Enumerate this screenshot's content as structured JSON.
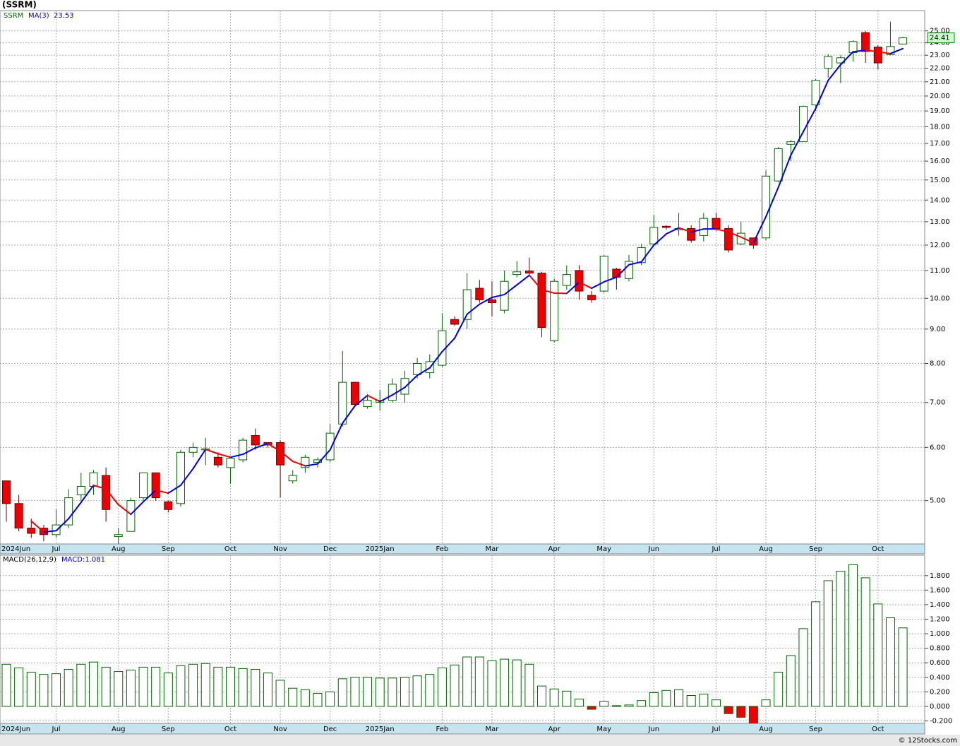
{
  "footer": "© 12Stocks.com",
  "chart_data": [
    {
      "type": "candlestick",
      "title": "(SSRM)",
      "ticker": "SSRM",
      "log_scale": true,
      "grid": true,
      "up_color": "#ffffff",
      "up_edge": "#006600",
      "down_color": "#ee0000",
      "down_edge": "#660000",
      "categories": [
        "2024Jun",
        null,
        null,
        null,
        "Jul",
        null,
        null,
        null,
        null,
        "Aug",
        null,
        null,
        null,
        "Sep",
        null,
        null,
        null,
        null,
        "Oct",
        null,
        null,
        null,
        "Nov",
        null,
        null,
        null,
        "Dec",
        null,
        null,
        null,
        "2025Jan",
        null,
        null,
        null,
        null,
        "Feb",
        null,
        null,
        null,
        "Mar",
        null,
        null,
        null,
        null,
        "Apr",
        null,
        null,
        null,
        "May",
        null,
        null,
        null,
        "Jun",
        null,
        null,
        null,
        null,
        "Jul",
        null,
        null,
        null,
        "Aug",
        null,
        null,
        null,
        "Sep",
        null,
        null,
        null,
        null,
        "Oct",
        null,
        null
      ],
      "open": [
        5.35,
        4.95,
        4.55,
        4.55,
        4.45,
        4.6,
        5.1,
        5.25,
        5.45,
        4.42,
        4.5,
        5.05,
        5.5,
        4.98,
        4.95,
        5.9,
        5.95,
        5.8,
        5.6,
        5.75,
        6.25,
        6.1,
        6.1,
        5.35,
        5.6,
        5.7,
        5.75,
        6.5,
        7.5,
        6.9,
        7.0,
        7.05,
        7.2,
        7.7,
        7.75,
        7.95,
        9.3,
        9.3,
        10.35,
        9.95,
        9.6,
        10.85,
        10.98,
        10.9,
        8.65,
        10.45,
        11.0,
        10.1,
        10.25,
        11.05,
        10.7,
        11.3,
        12.05,
        12.8,
        12.65,
        12.7,
        12.4,
        13.15,
        12.7,
        12.05,
        12.3,
        12.3,
        14.95,
        16.95,
        17.1,
        19.4,
        22.0,
        22.4,
        23.2,
        24.85,
        23.65,
        23.05,
        23.9
      ],
      "high": [
        5.35,
        5.1,
        4.7,
        4.6,
        4.85,
        5.2,
        5.5,
        5.55,
        5.6,
        4.55,
        5.05,
        5.5,
        5.5,
        5.0,
        5.95,
        6.1,
        6.2,
        5.9,
        5.8,
        6.2,
        6.4,
        6.1,
        6.15,
        5.55,
        5.85,
        5.8,
        6.5,
        8.35,
        7.5,
        7.2,
        7.3,
        7.6,
        7.8,
        8.15,
        8.25,
        9.5,
        9.4,
        10.9,
        10.65,
        10.6,
        11.0,
        11.35,
        11.5,
        10.95,
        10.7,
        11.2,
        11.2,
        10.25,
        11.6,
        11.1,
        11.6,
        12.05,
        13.3,
        12.85,
        13.4,
        12.85,
        13.4,
        13.4,
        12.85,
        13.0,
        12.3,
        15.5,
        16.8,
        17.2,
        19.35,
        21.2,
        23.1,
        23.0,
        24.2,
        25.0,
        23.8,
        25.8,
        24.5
      ],
      "low": [
        4.65,
        4.5,
        4.4,
        4.35,
        4.4,
        4.55,
        5.0,
        5.1,
        4.65,
        4.3,
        4.5,
        5.0,
        5.0,
        4.8,
        4.9,
        5.8,
        5.65,
        5.6,
        5.3,
        5.7,
        5.95,
        6.0,
        5.05,
        5.3,
        5.5,
        5.6,
        5.7,
        6.45,
        6.9,
        6.85,
        6.8,
        7.0,
        7.0,
        7.6,
        7.6,
        7.9,
        9.1,
        9.0,
        9.85,
        9.4,
        9.5,
        10.75,
        10.85,
        8.75,
        8.6,
        10.3,
        9.95,
        9.85,
        10.2,
        10.3,
        10.6,
        11.2,
        11.95,
        12.65,
        12.4,
        12.1,
        12.15,
        12.6,
        11.7,
        12.0,
        11.85,
        12.2,
        14.9,
        16.0,
        17.1,
        19.0,
        21.3,
        20.9,
        22.5,
        22.4,
        21.9,
        23.0,
        23.9
      ],
      "close": [
        4.95,
        4.55,
        4.47,
        4.45,
        4.6,
        5.05,
        5.25,
        5.5,
        4.85,
        4.45,
        5.0,
        5.5,
        5.05,
        4.85,
        5.9,
        6.0,
        5.97,
        5.65,
        5.78,
        6.15,
        6.05,
        6.05,
        5.65,
        5.45,
        5.8,
        5.75,
        6.3,
        7.5,
        6.95,
        7.05,
        7.05,
        7.45,
        7.6,
        8.0,
        8.05,
        8.95,
        9.15,
        10.3,
        9.95,
        9.85,
        10.6,
        10.95,
        10.9,
        9.05,
        10.6,
        10.85,
        10.25,
        9.95,
        11.55,
        10.75,
        11.35,
        11.9,
        12.75,
        12.75,
        12.7,
        12.2,
        13.15,
        12.7,
        11.8,
        12.5,
        12.0,
        15.2,
        16.7,
        17.1,
        19.3,
        21.1,
        22.9,
        22.8,
        24.1,
        23.3,
        22.4,
        23.7,
        24.41
      ],
      "series": [
        {
          "name": "MA(3)",
          "color": "#0000dd",
          "down_color": "#ee0000",
          "values": [
            null,
            null,
            4.66,
            4.49,
            4.51,
            4.7,
            4.97,
            5.27,
            5.2,
            4.93,
            4.77,
            4.98,
            5.18,
            5.13,
            5.27,
            5.58,
            5.96,
            5.87,
            5.8,
            5.86,
            5.99,
            6.08,
            5.92,
            5.72,
            5.63,
            5.67,
            5.95,
            6.52,
            6.92,
            7.17,
            7.02,
            7.18,
            7.37,
            7.68,
            7.88,
            8.33,
            8.72,
            9.47,
            9.8,
            10.03,
            10.13,
            10.47,
            10.82,
            10.3,
            10.18,
            10.17,
            10.57,
            10.35,
            10.58,
            10.75,
            11.22,
            11.33,
            12.0,
            12.47,
            12.73,
            12.55,
            12.68,
            12.68,
            12.55,
            12.33,
            12.1,
            13.23,
            14.63,
            16.33,
            17.7,
            19.17,
            21.1,
            22.27,
            23.27,
            23.4,
            23.27,
            23.13,
            23.53
          ]
        }
      ],
      "ylim": [
        4.31,
        26.8
      ],
      "yticks": [
        {
          "value": 5,
          "label": "5.00"
        },
        {
          "value": 6,
          "label": "6.00"
        },
        {
          "value": 7,
          "label": "7.00"
        },
        {
          "value": 8,
          "label": "8.00"
        },
        {
          "value": 9,
          "label": "9.00"
        },
        {
          "value": 10,
          "label": "10.00"
        },
        {
          "value": 11,
          "label": "11.00"
        },
        {
          "value": 12,
          "label": "12.00"
        },
        {
          "value": 13,
          "label": "13.00"
        },
        {
          "value": 14,
          "label": "14.00"
        },
        {
          "value": 15,
          "label": "15.00"
        },
        {
          "value": 16,
          "label": "16.00"
        },
        {
          "value": 17,
          "label": "17.00"
        },
        {
          "value": 18,
          "label": "18.00"
        },
        {
          "value": 19,
          "label": "19.00"
        },
        {
          "value": 20,
          "label": "20.00"
        },
        {
          "value": 21,
          "label": "21.00"
        },
        {
          "value": 22,
          "label": "22.00"
        },
        {
          "value": 23,
          "label": "23.00"
        },
        {
          "value": 24,
          "label": "24.00"
        },
        {
          "value": 25,
          "label": "25.00"
        }
      ]
    },
    {
      "type": "bar",
      "title": "MACD(26,12,9)",
      "legend_label": "MACD:1.081",
      "grid": true,
      "color": "#ffffff",
      "edge": "#006600",
      "negative_color": "#ee0000",
      "categories": [
        "2024Jun",
        null,
        null,
        null,
        "Jul",
        null,
        null,
        null,
        null,
        "Aug",
        null,
        null,
        null,
        "Sep",
        null,
        null,
        null,
        null,
        "Oct",
        null,
        null,
        null,
        "Nov",
        null,
        null,
        null,
        "Dec",
        null,
        null,
        null,
        "2025Jan",
        null,
        null,
        null,
        null,
        "Feb",
        null,
        null,
        null,
        "Mar",
        null,
        null,
        null,
        null,
        "Apr",
        null,
        null,
        null,
        "May",
        null,
        null,
        null,
        "Jun",
        null,
        null,
        null,
        null,
        "Jul",
        null,
        null,
        null,
        "Aug",
        null,
        null,
        null,
        "Sep",
        null,
        null,
        null,
        null,
        "Oct",
        null,
        null
      ],
      "values": [
        0.58,
        0.53,
        0.47,
        0.44,
        0.45,
        0.51,
        0.58,
        0.61,
        0.54,
        0.48,
        0.5,
        0.54,
        0.54,
        0.46,
        0.56,
        0.58,
        0.59,
        0.54,
        0.54,
        0.52,
        0.51,
        0.46,
        0.36,
        0.25,
        0.23,
        0.18,
        0.2,
        0.38,
        0.4,
        0.4,
        0.39,
        0.39,
        0.4,
        0.42,
        0.44,
        0.53,
        0.57,
        0.68,
        0.68,
        0.63,
        0.65,
        0.64,
        0.58,
        0.28,
        0.24,
        0.21,
        0.1,
        -0.04,
        0.07,
        0.01,
        0.02,
        0.08,
        0.19,
        0.22,
        0.23,
        0.15,
        0.17,
        0.09,
        -0.1,
        -0.15,
        -0.24,
        0.09,
        0.47,
        0.7,
        1.07,
        1.44,
        1.73,
        1.86,
        1.95,
        1.77,
        1.41,
        1.22,
        1.081
      ],
      "ylim": [
        -0.234,
        2.08
      ],
      "yticks": [
        {
          "value": -0.2,
          "label": "-0.200"
        },
        {
          "value": 0,
          "label": "0.000"
        },
        {
          "value": 0.2,
          "label": "0.200"
        },
        {
          "value": 0.4,
          "label": "0.400"
        },
        {
          "value": 0.6,
          "label": "0.600"
        },
        {
          "value": 0.8,
          "label": "0.800"
        },
        {
          "value": 1,
          "label": "1.000"
        },
        {
          "value": 1.2,
          "label": "1.200"
        },
        {
          "value": 1.4,
          "label": "1.400"
        },
        {
          "value": 1.6,
          "label": "1.600"
        },
        {
          "value": 1.8,
          "label": "1.800"
        }
      ]
    }
  ]
}
